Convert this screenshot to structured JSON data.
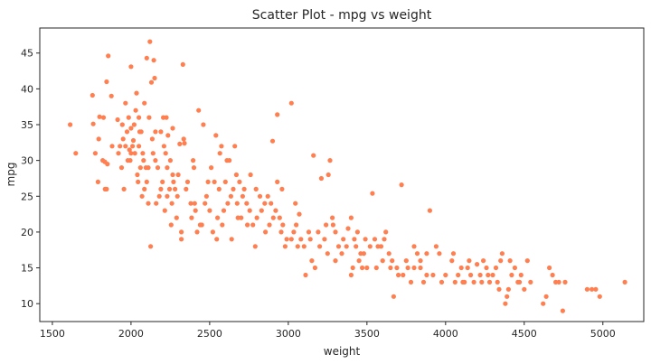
{
  "chart_data": {
    "type": "scatter",
    "title": "Scatter Plot - mpg vs weight",
    "xlabel": "weight",
    "ylabel": "mpg",
    "xlim": [
      1420,
      5260
    ],
    "ylim": [
      7.5,
      48.5
    ],
    "xticks": [
      1500,
      2000,
      2500,
      3000,
      3500,
      4000,
      4500,
      5000
    ],
    "yticks": [
      10,
      15,
      20,
      25,
      30,
      35,
      40,
      45
    ],
    "grid": false,
    "legend": "none",
    "marker_color": "#ff7f50",
    "points": [
      [
        1613,
        35
      ],
      [
        1649,
        31
      ],
      [
        1755,
        39.1
      ],
      [
        1760,
        35.1
      ],
      [
        1773,
        31
      ],
      [
        1795,
        33
      ],
      [
        1800,
        36.1
      ],
      [
        1825,
        36
      ],
      [
        1834,
        29.8
      ],
      [
        1835,
        26
      ],
      [
        1845,
        26
      ],
      [
        1850,
        29.5
      ],
      [
        1845,
        41
      ],
      [
        1855,
        44.6
      ],
      [
        1875,
        39
      ],
      [
        1915,
        35.7
      ],
      [
        1930,
        32
      ],
      [
        1940,
        29
      ],
      [
        1950,
        33
      ],
      [
        1965,
        32
      ],
      [
        1965,
        38
      ],
      [
        1975,
        34
      ],
      [
        1985,
        36
      ],
      [
        1990,
        31.5
      ],
      [
        1995,
        30
      ],
      [
        2000,
        43.1
      ],
      [
        2000,
        31
      ],
      [
        2000,
        34.5
      ],
      [
        2015,
        32.8
      ],
      [
        2020,
        35
      ],
      [
        2025,
        31
      ],
      [
        2030,
        37
      ],
      [
        2035,
        39.4
      ],
      [
        2045,
        27
      ],
      [
        2050,
        32
      ],
      [
        2050,
        36
      ],
      [
        2060,
        29
      ],
      [
        2065,
        34
      ],
      [
        2070,
        25
      ],
      [
        2075,
        31
      ],
      [
        2085,
        38
      ],
      [
        2085,
        26
      ],
      [
        2100,
        44.3
      ],
      [
        2100,
        27
      ],
      [
        2110,
        29
      ],
      [
        2110,
        24
      ],
      [
        2115,
        36
      ],
      [
        2120,
        46.6
      ],
      [
        2125,
        18
      ],
      [
        2130,
        40.9
      ],
      [
        2135,
        33
      ],
      [
        2145,
        44
      ],
      [
        2150,
        41.5
      ],
      [
        2155,
        34
      ],
      [
        2155,
        30
      ],
      [
        2160,
        24
      ],
      [
        2190,
        26
      ],
      [
        2190,
        34
      ],
      [
        2200,
        27
      ],
      [
        2205,
        36
      ],
      [
        2210,
        32
      ],
      [
        2215,
        23
      ],
      [
        2220,
        31
      ],
      [
        2225,
        36
      ],
      [
        2230,
        25
      ],
      [
        2235,
        33.5
      ],
      [
        2245,
        26
      ],
      [
        2250,
        30
      ],
      [
        2255,
        21
      ],
      [
        2265,
        28
      ],
      [
        2265,
        34.5
      ],
      [
        2280,
        26
      ],
      [
        2290,
        22
      ],
      [
        2295,
        25
      ],
      [
        2300,
        28
      ],
      [
        2310,
        32.3
      ],
      [
        2320,
        19
      ],
      [
        2330,
        43.4
      ],
      [
        2335,
        33
      ],
      [
        2340,
        32.4
      ],
      [
        2350,
        26
      ],
      [
        2380,
        24
      ],
      [
        2385,
        22
      ],
      [
        2395,
        30
      ],
      [
        2400,
        29
      ],
      [
        2405,
        24
      ],
      [
        2420,
        20
      ],
      [
        2430,
        37
      ],
      [
        2450,
        21
      ],
      [
        2460,
        35
      ],
      [
        2480,
        25
      ],
      [
        2500,
        23
      ],
      [
        2510,
        29
      ],
      [
        2530,
        27
      ],
      [
        2540,
        33.5
      ],
      [
        2545,
        19
      ],
      [
        2560,
        26
      ],
      [
        2565,
        31
      ],
      [
        2575,
        32
      ],
      [
        2580,
        21
      ],
      [
        2590,
        23
      ],
      [
        2600,
        27
      ],
      [
        2615,
        24
      ],
      [
        2625,
        30
      ],
      [
        2635,
        25
      ],
      [
        2640,
        19
      ],
      [
        2660,
        32
      ],
      [
        2670,
        28
      ],
      [
        2675,
        24
      ],
      [
        2690,
        27
      ],
      [
        2700,
        22
      ],
      [
        2720,
        26
      ],
      [
        2735,
        24
      ],
      [
        2755,
        23
      ],
      [
        2775,
        21
      ],
      [
        2790,
        18
      ],
      [
        2795,
        26
      ],
      [
        2800,
        22
      ],
      [
        2830,
        23
      ],
      [
        2855,
        20
      ],
      [
        2870,
        25
      ],
      [
        2890,
        24
      ],
      [
        2900,
        32.7
      ],
      [
        2905,
        22
      ],
      [
        2930,
        36.4
      ],
      [
        2930,
        27
      ],
      [
        2945,
        22
      ],
      [
        2955,
        20
      ],
      [
        2965,
        21
      ],
      [
        2980,
        18
      ],
      [
        3020,
        19
      ],
      [
        3020,
        38
      ],
      [
        3035,
        20
      ],
      [
        3045,
        24
      ],
      [
        3060,
        18
      ],
      [
        3070,
        22.5
      ],
      [
        3100,
        18
      ],
      [
        3110,
        14
      ],
      [
        3130,
        20
      ],
      [
        3150,
        16
      ],
      [
        3160,
        30.7
      ],
      [
        3170,
        15
      ],
      [
        3190,
        20
      ],
      [
        3210,
        27.5
      ],
      [
        3230,
        19
      ],
      [
        3250,
        17
      ],
      [
        3255,
        28
      ],
      [
        3265,
        30
      ],
      [
        3280,
        22
      ],
      [
        3285,
        21
      ],
      [
        3300,
        16
      ],
      [
        3320,
        18
      ],
      [
        3350,
        19
      ],
      [
        3380,
        20.5
      ],
      [
        3400,
        22
      ],
      [
        3410,
        15
      ],
      [
        3420,
        19
      ],
      [
        3430,
        18
      ],
      [
        3440,
        20
      ],
      [
        3450,
        16
      ],
      [
        3470,
        15
      ],
      [
        3480,
        17
      ],
      [
        3500,
        15
      ],
      [
        3520,
        18
      ],
      [
        3535,
        25.4
      ],
      [
        3560,
        15
      ],
      [
        3570,
        18
      ],
      [
        3600,
        16
      ],
      [
        3620,
        20
      ],
      [
        3640,
        17
      ],
      [
        3660,
        16
      ],
      [
        3670,
        11
      ],
      [
        3690,
        15
      ],
      [
        3720,
        26.6
      ],
      [
        3730,
        14
      ],
      [
        3750,
        16
      ],
      [
        3780,
        13
      ],
      [
        3800,
        18
      ],
      [
        3820,
        17
      ],
      [
        3840,
        15
      ],
      [
        3860,
        13
      ],
      [
        3880,
        17
      ],
      [
        3900,
        23
      ],
      [
        3920,
        14
      ],
      [
        3940,
        18
      ],
      [
        3975,
        13
      ],
      [
        4000,
        14
      ],
      [
        4050,
        17
      ],
      [
        4080,
        14
      ],
      [
        4100,
        15
      ],
      [
        4120,
        13
      ],
      [
        4140,
        15
      ],
      [
        4150,
        16
      ],
      [
        4180,
        13
      ],
      [
        4200,
        15.5
      ],
      [
        4220,
        14
      ],
      [
        4240,
        16
      ],
      [
        4260,
        15
      ],
      [
        4280,
        13
      ],
      [
        4300,
        14
      ],
      [
        4320,
        15
      ],
      [
        4340,
        12
      ],
      [
        4350,
        16
      ],
      [
        4360,
        17
      ],
      [
        4380,
        10
      ],
      [
        4390,
        11
      ],
      [
        4400,
        12
      ],
      [
        4420,
        14
      ],
      [
        4440,
        15
      ],
      [
        4460,
        13
      ],
      [
        4480,
        14
      ],
      [
        4500,
        12
      ],
      [
        4520,
        16
      ],
      [
        4620,
        10
      ],
      [
        4640,
        11
      ],
      [
        4660,
        15
      ],
      [
        4680,
        14
      ],
      [
        4700,
        13
      ],
      [
        4720,
        13
      ],
      [
        4745,
        9
      ],
      [
        4760,
        13
      ],
      [
        4900,
        12
      ],
      [
        4930,
        12
      ],
      [
        4955,
        12
      ],
      [
        4980,
        11
      ],
      [
        5140,
        13
      ],
      [
        1790,
        27
      ],
      [
        1820,
        30
      ],
      [
        1880,
        32
      ],
      [
        1920,
        31
      ],
      [
        1945,
        35
      ],
      [
        1955,
        26
      ],
      [
        1980,
        30
      ],
      [
        2010,
        32
      ],
      [
        2040,
        28
      ],
      [
        2055,
        34
      ],
      [
        2080,
        30
      ],
      [
        2095,
        29
      ],
      [
        2140,
        31
      ],
      [
        2170,
        29
      ],
      [
        2180,
        25
      ],
      [
        2230,
        29
      ],
      [
        2260,
        24
      ],
      [
        2270,
        27
      ],
      [
        2320,
        20
      ],
      [
        2360,
        27
      ],
      [
        2410,
        23
      ],
      [
        2440,
        21
      ],
      [
        2470,
        24
      ],
      [
        2490,
        27
      ],
      [
        2520,
        20
      ],
      [
        2550,
        22
      ],
      [
        2610,
        30
      ],
      [
        2650,
        26
      ],
      [
        2680,
        22
      ],
      [
        2710,
        25
      ],
      [
        2740,
        21
      ],
      [
        2760,
        28
      ],
      [
        2820,
        25
      ],
      [
        2850,
        24
      ],
      [
        2880,
        21
      ],
      [
        2920,
        23
      ],
      [
        2960,
        26
      ],
      [
        2990,
        19
      ],
      [
        3050,
        21
      ],
      [
        3080,
        19
      ],
      [
        3140,
        19
      ],
      [
        3200,
        18
      ],
      [
        3240,
        21
      ],
      [
        3300,
        20
      ],
      [
        3340,
        17
      ],
      [
        3370,
        18
      ],
      [
        3400,
        14
      ],
      [
        3460,
        17
      ],
      [
        3490,
        19
      ],
      [
        3550,
        19
      ],
      [
        3590,
        18
      ],
      [
        3610,
        19
      ],
      [
        3650,
        15
      ],
      [
        3700,
        14
      ],
      [
        3760,
        15
      ],
      [
        3800,
        15
      ],
      [
        3840,
        16
      ],
      [
        3880,
        14
      ],
      [
        3960,
        17
      ],
      [
        4040,
        16
      ],
      [
        4060,
        13
      ],
      [
        4110,
        13
      ],
      [
        4160,
        14
      ],
      [
        4230,
        13
      ],
      [
        4270,
        14
      ],
      [
        4330,
        13
      ],
      [
        4410,
        16
      ],
      [
        4470,
        13
      ],
      [
        4540,
        13
      ]
    ]
  }
}
